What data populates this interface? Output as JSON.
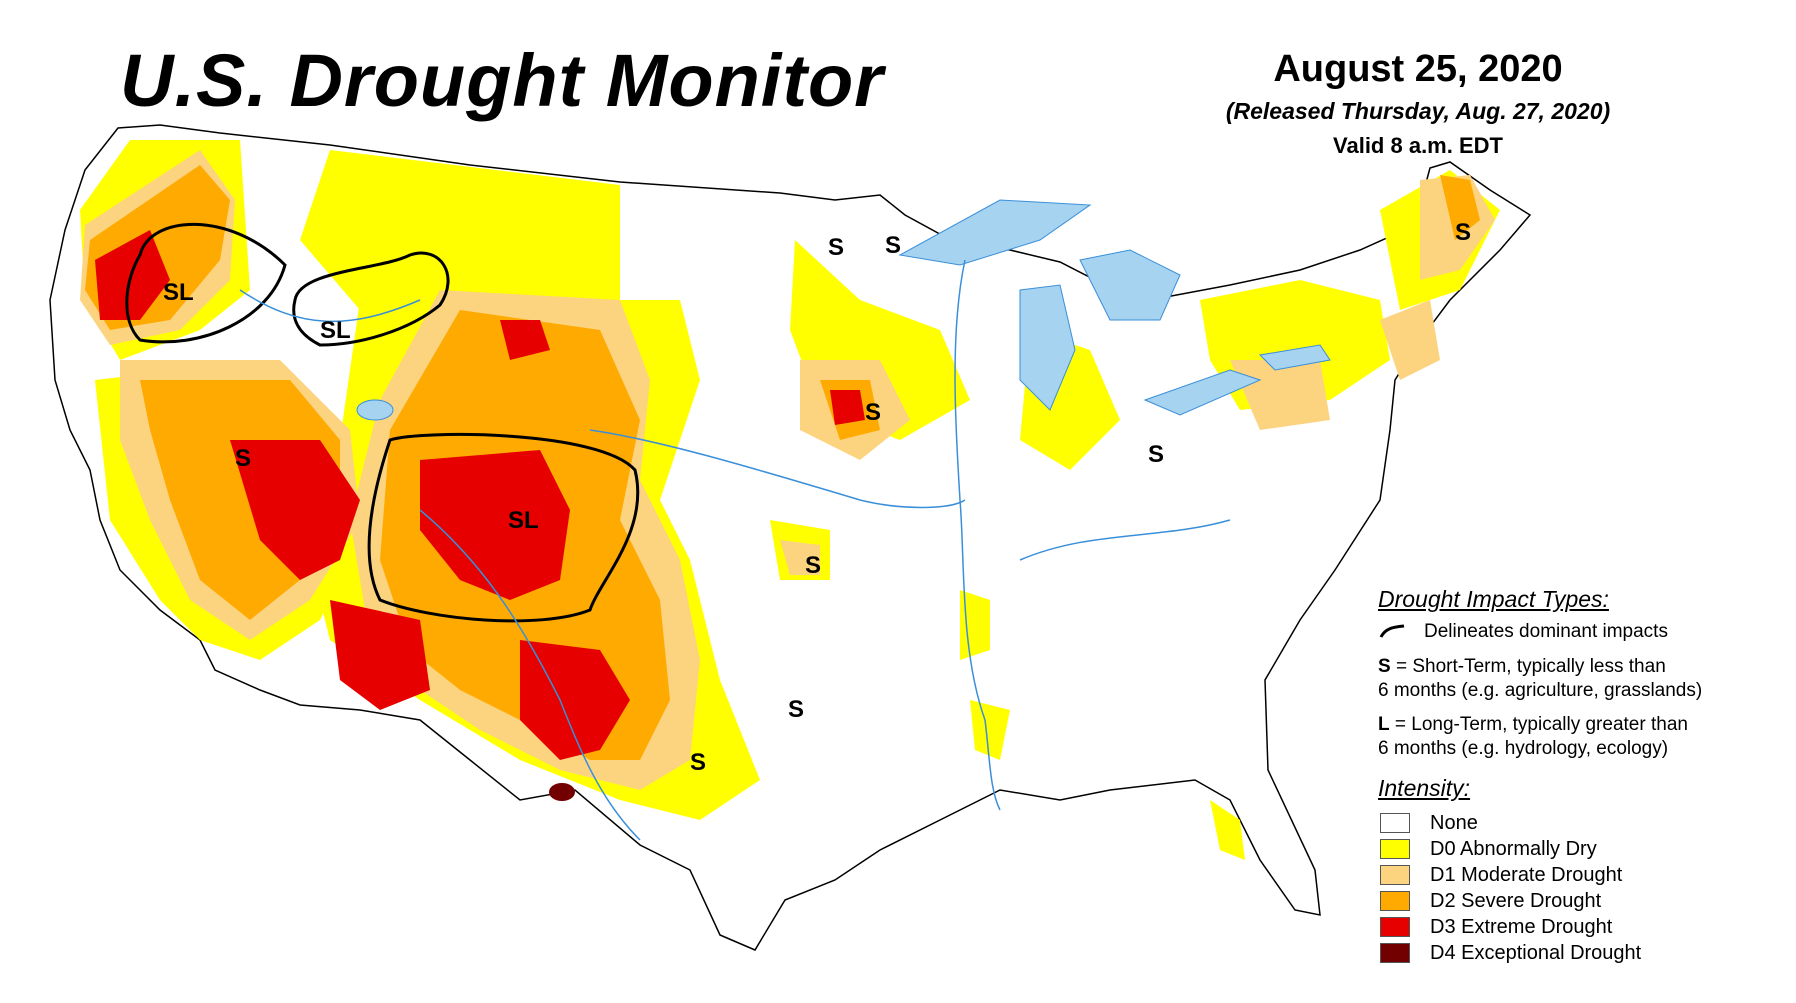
{
  "header": {
    "title": "U.S. Drought Monitor",
    "date": "August 25, 2020",
    "released": "(Released Thursday, Aug. 27, 2020)",
    "valid": "Valid 8 a.m. EDT"
  },
  "colors": {
    "none": "#ffffff",
    "d0": "#ffff00",
    "d1": "#fcd37f",
    "d2": "#ffaa00",
    "d3": "#e60000",
    "d4": "#730000",
    "water": "#a5d3f0",
    "boundary": "#000000",
    "river": "#3a8fd9"
  },
  "legend": {
    "impact_title": "Drought Impact Types:",
    "impact_line_label": "Delineates dominant impacts",
    "short_term": {
      "code": "S",
      "text": " = Short-Term, typically less than",
      "text2": "6 months (e.g. agriculture, grasslands)"
    },
    "long_term": {
      "code": "L",
      "text": " = Long-Term, typically greater than",
      "text2": "6 months (e.g. hydrology, ecology)"
    },
    "intensity_title": "Intensity:",
    "intensity": [
      {
        "label": "None"
      },
      {
        "label": "D0 Abnormally Dry"
      },
      {
        "label": "D1 Moderate Drought"
      },
      {
        "label": "D2 Severe Drought"
      },
      {
        "label": "D3 Extreme Drought"
      },
      {
        "label": "D4 Exceptional Drought"
      }
    ]
  },
  "map": {
    "impact_labels": [
      "SL",
      "SL",
      "S",
      "SL",
      "S",
      "S",
      "S",
      "S",
      "S",
      "S",
      "S",
      "S"
    ]
  }
}
